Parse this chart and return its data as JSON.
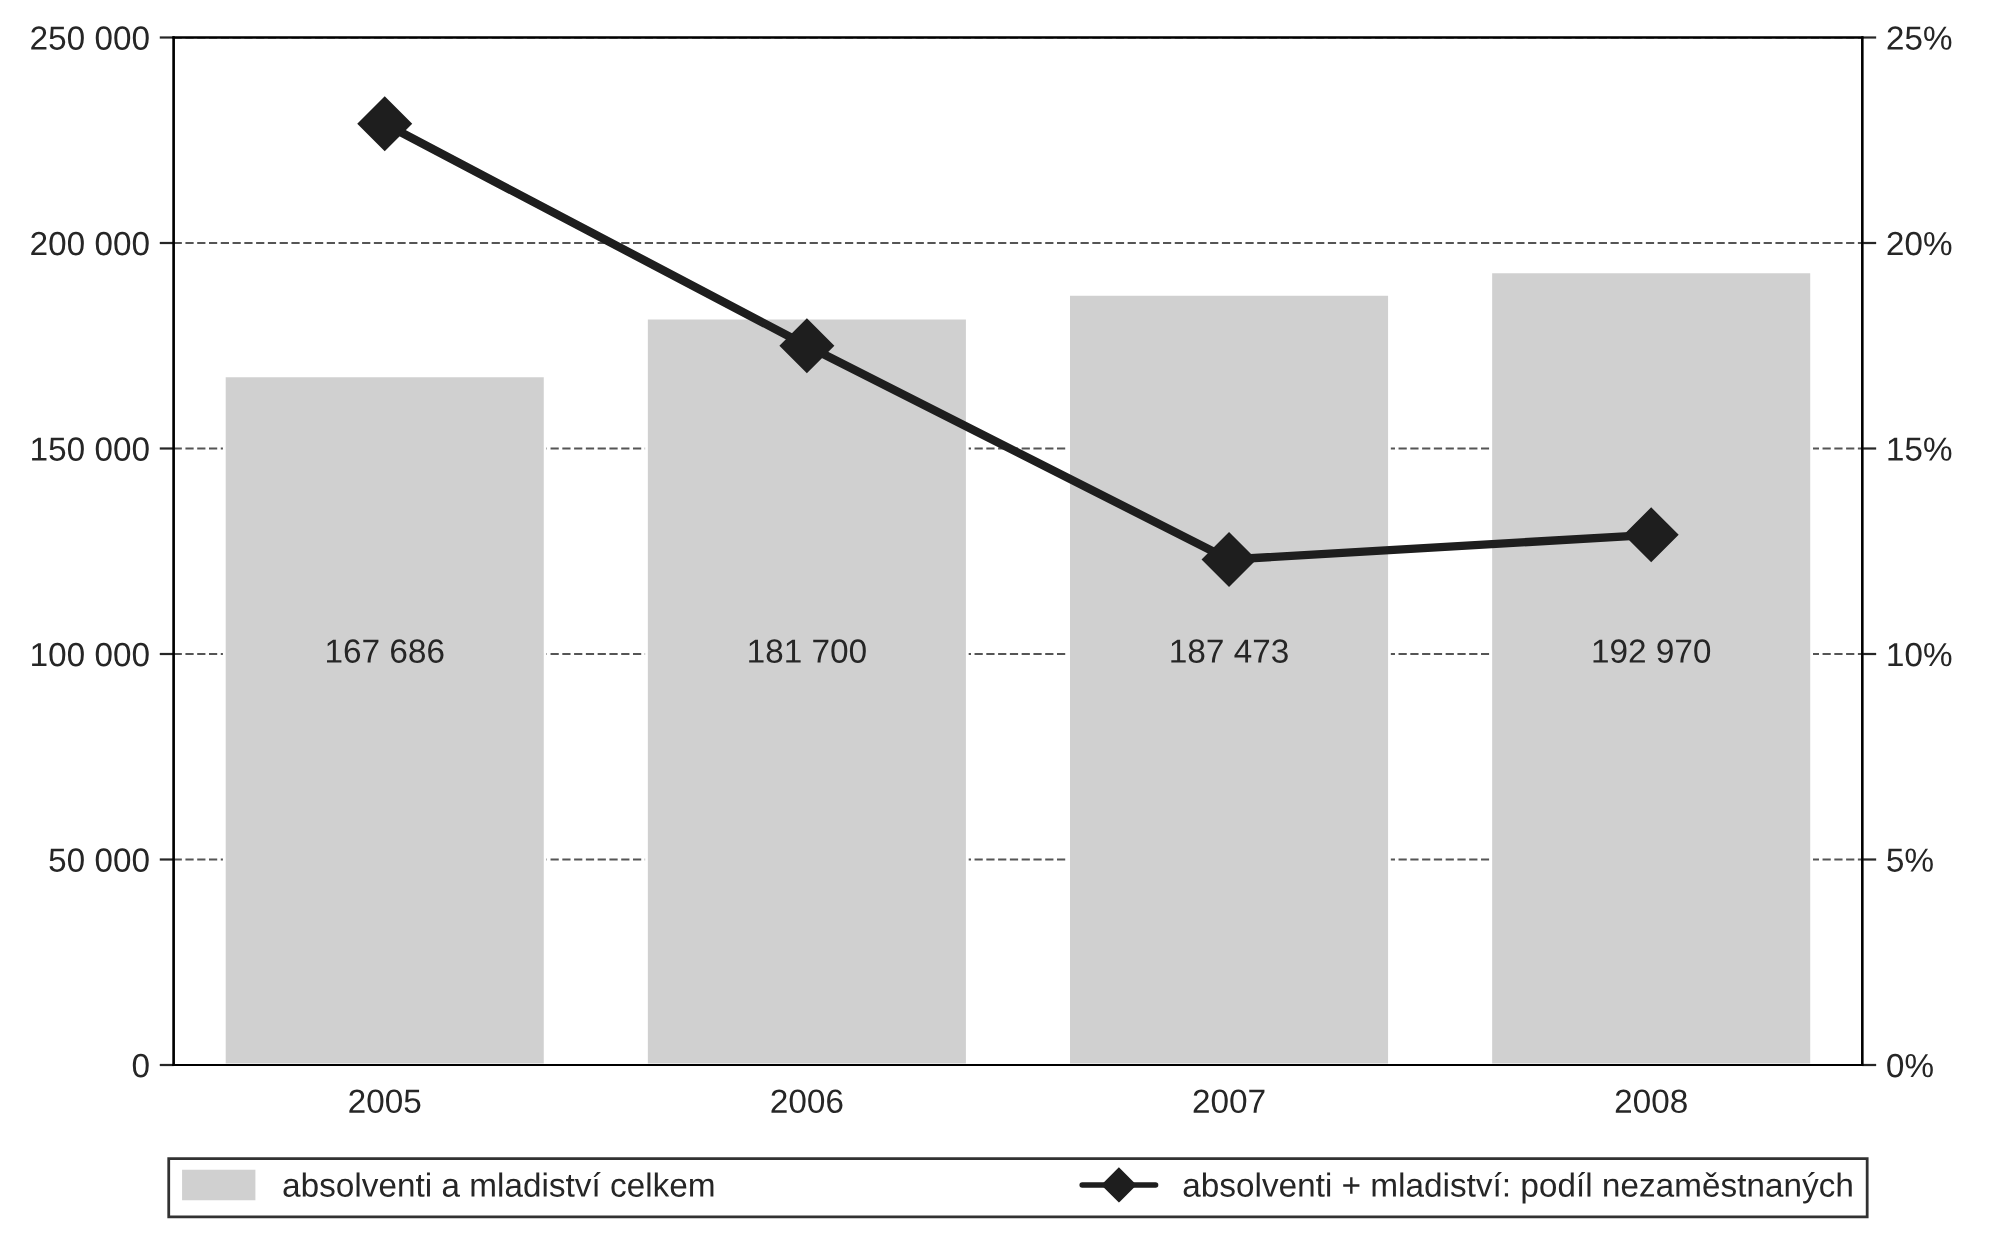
{
  "chart_data": {
    "type": "bar",
    "categories": [
      "2005",
      "2006",
      "2007",
      "2008"
    ],
    "series": [
      {
        "name": "absolventi a mladiství celkem",
        "color": "#d0d0d0",
        "values": [
          167686,
          181700,
          187473,
          192970
        ],
        "value_labels": [
          "167 686",
          "181 700",
          "187 473",
          "192 970"
        ]
      },
      {
        "name": "absolventi + mladiství: podíl nezaměstnaných",
        "type": "line",
        "axis": "y2",
        "color": "#1e1e1e",
        "marker": "diamond",
        "line_style": "solid",
        "values": [
          22.9,
          17.5,
          12.3,
          12.9
        ]
      }
    ],
    "ylim": [
      0,
      250000
    ],
    "yticks": [
      {
        "value": 0,
        "label": "0"
      },
      {
        "value": 50000,
        "label": "50 000"
      },
      {
        "value": 100000,
        "label": "100 000"
      },
      {
        "value": 150000,
        "label": "150 000"
      },
      {
        "value": 200000,
        "label": "200 000"
      },
      {
        "value": 250000,
        "label": "250 000"
      }
    ],
    "y2lim": [
      0,
      25
    ],
    "y2ticks": [
      {
        "value": 0,
        "label": "0%"
      },
      {
        "value": 5,
        "label": "5%"
      },
      {
        "value": 10,
        "label": "10%"
      },
      {
        "value": 15,
        "label": "15%"
      },
      {
        "value": 20,
        "label": "20%"
      },
      {
        "value": 25,
        "label": "25%"
      }
    ],
    "grid": "y",
    "legend": "bottom"
  }
}
